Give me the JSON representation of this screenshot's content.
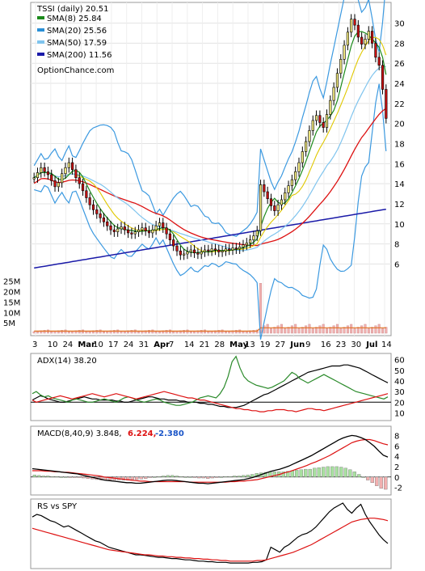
{
  "chart_data": [
    {
      "type": "candlestick",
      "title": "TSSI (daily) 20.51",
      "watermark": "OptionChance.com",
      "legend": [
        {
          "label": "SMA(8) 25.84",
          "color": "#1b8a1b"
        },
        {
          "label": "SMA(20) 25.56",
          "color": "#2a8fd6"
        },
        {
          "label": "SMA(50) 17.59",
          "color": "#7fc4ee"
        },
        {
          "label": "SMA(200) 11.56",
          "color": "#1a1aa8"
        }
      ],
      "x_tick_labels": [
        "3",
        "10",
        "24",
        "Mar",
        "10",
        "17",
        "24",
        "31",
        "Apr",
        "7",
        "14",
        "21",
        "28",
        "May",
        "13",
        "19",
        "27",
        "Jun",
        "9",
        "16",
        "23",
        "30",
        "Jul",
        "14"
      ],
      "price_ticks": [
        "30",
        "28",
        "26",
        "24",
        "22",
        "20",
        "18",
        "16",
        "14",
        "12",
        "10",
        "8",
        "6"
      ],
      "price_ylim": [
        4.5,
        31.5
      ],
      "volume_ticks": [
        "25M",
        "20M",
        "15M",
        "10M",
        "5M"
      ],
      "last_close": 20.51,
      "closes": [
        14.6,
        15.1,
        15.6,
        15.2,
        14.9,
        14.3,
        13.7,
        14.1,
        15.0,
        15.6,
        16.1,
        15.4,
        14.6,
        14.0,
        13.3,
        12.6,
        11.9,
        11.4,
        11.0,
        10.6,
        10.2,
        9.8,
        9.4,
        9.2,
        9.5,
        9.7,
        9.4,
        9.1,
        9.0,
        9.2,
        9.4,
        9.6,
        9.3,
        9.1,
        9.4,
        9.8,
        10.1,
        9.6,
        9.0,
        8.4,
        7.8,
        7.3,
        6.9,
        7.0,
        7.2,
        7.4,
        7.1,
        7.0,
        7.2,
        7.4,
        7.3,
        7.5,
        7.4,
        7.2,
        7.3,
        7.5,
        7.4,
        7.6,
        7.5,
        7.7,
        7.9,
        8.1,
        8.4,
        8.8,
        9.3,
        13.9,
        13.2,
        12.5,
        11.8,
        11.3,
        11.9,
        12.4,
        13.1,
        13.8,
        14.4,
        15.2,
        16.1,
        17.2,
        18.2,
        19.3,
        20.3,
        20.8,
        20.1,
        19.6,
        20.9,
        22.3,
        23.6,
        25.0,
        26.4,
        27.8,
        29.1,
        30.4,
        29.8,
        28.6,
        27.9,
        28.4,
        29.2,
        28.0,
        26.6,
        25.8,
        23.4,
        20.51
      ],
      "sma8_label": "SMA(8) 25.84",
      "sma20_label": "SMA(20) 25.56",
      "sma50_label": "SMA(50) 17.59",
      "sma200_label": "SMA(200) 11.56"
    },
    {
      "type": "line",
      "title": "ADX(14) 38.20",
      "ticks": [
        "60",
        "50",
        "40",
        "30",
        "20",
        "10"
      ],
      "ylim": [
        5,
        62
      ],
      "reference_line": 20,
      "series": [
        {
          "color": "#000000",
          "values": [
            22,
            24,
            26,
            25,
            23,
            22,
            21,
            20,
            20,
            21,
            22,
            23,
            24,
            25,
            24,
            23,
            23,
            22,
            22,
            22,
            22,
            21,
            21,
            20,
            20,
            21,
            22,
            23,
            24,
            25,
            25,
            24,
            23,
            23,
            22,
            22,
            22,
            21,
            21,
            20,
            20,
            20,
            19,
            19,
            18,
            18,
            17,
            16,
            16,
            15,
            15,
            15,
            16,
            17,
            19,
            21,
            23,
            25,
            27,
            28,
            30,
            32,
            34,
            36,
            38,
            40,
            42,
            44,
            46,
            48,
            49,
            50,
            51,
            52,
            53,
            54,
            54,
            54,
            55,
            55,
            54,
            53,
            52,
            50,
            48,
            46,
            44,
            42,
            40,
            38.2
          ]
        },
        {
          "color": "#2a8a2a",
          "values": [
            28,
            30,
            27,
            25,
            26,
            24,
            23,
            22,
            21,
            20,
            22,
            23,
            22,
            21,
            20,
            20,
            21,
            22,
            23,
            22,
            21,
            20,
            22,
            24,
            25,
            24,
            22,
            21,
            20,
            21,
            22,
            23,
            22,
            20,
            19,
            18,
            17,
            17,
            18,
            19,
            20,
            22,
            24,
            25,
            26,
            25,
            24,
            28,
            34,
            44,
            58,
            63,
            52,
            44,
            40,
            38,
            36,
            35,
            34,
            33,
            34,
            36,
            38,
            40,
            44,
            48,
            46,
            42,
            40,
            38,
            40,
            42,
            44,
            46,
            44,
            42,
            40,
            38,
            36,
            34,
            32,
            30,
            29,
            28,
            27,
            26,
            25,
            24,
            23,
            25
          ]
        },
        {
          "color": "#dd1111",
          "values": [
            22,
            20,
            21,
            22,
            23,
            24,
            25,
            26,
            25,
            24,
            23,
            24,
            25,
            26,
            27,
            28,
            27,
            26,
            25,
            26,
            27,
            28,
            27,
            26,
            25,
            24,
            23,
            24,
            25,
            26,
            27,
            28,
            29,
            30,
            29,
            28,
            27,
            26,
            25,
            24,
            24,
            23,
            22,
            22,
            21,
            20,
            19,
            18,
            17,
            16,
            15,
            14,
            14,
            13,
            13,
            12,
            12,
            11,
            11,
            12,
            12,
            13,
            13,
            13,
            12,
            12,
            11,
            12,
            13,
            14,
            14,
            13,
            13,
            12,
            13,
            14,
            15,
            16,
            17,
            18,
            19,
            20,
            21,
            22,
            23,
            24,
            25,
            26,
            27,
            28
          ]
        }
      ]
    },
    {
      "type": "line-histogram",
      "title": "MACD(8,40,9) 3.848,",
      "macd_value": "6.224,",
      "signal_value": "-2.380",
      "ticks": [
        "8",
        "6",
        "4",
        "2",
        "0",
        "-2"
      ],
      "ylim": [
        -3,
        9
      ],
      "macd_line": [
        1.6,
        1.5,
        1.4,
        1.3,
        1.2,
        1.1,
        1.0,
        0.9,
        0.8,
        0.7,
        0.6,
        0.4,
        0.2,
        0.0,
        -0.2,
        -0.4,
        -0.6,
        -0.7,
        -0.8,
        -0.9,
        -1.0,
        -1.1,
        -1.1,
        -1.2,
        -1.2,
        -1.1,
        -1.0,
        -0.9,
        -0.8,
        -0.7,
        -0.6,
        -0.6,
        -0.7,
        -0.8,
        -0.9,
        -1.0,
        -1.1,
        -1.2,
        -1.2,
        -1.3,
        -1.2,
        -1.1,
        -1.0,
        -0.9,
        -0.8,
        -0.7,
        -0.6,
        -0.5,
        -0.3,
        -0.1,
        0.2,
        0.5,
        0.8,
        1.1,
        1.3,
        1.5,
        1.8,
        2.1,
        2.5,
        2.9,
        3.3,
        3.7,
        4.1,
        4.6,
        5.1,
        5.6,
        6.1,
        6.6,
        7.1,
        7.5,
        7.8,
        8.0,
        7.9,
        7.6,
        7.2,
        6.6,
        5.9,
        5.0,
        4.2,
        3.848
      ],
      "signal_line": [
        1.2,
        1.2,
        1.2,
        1.1,
        1.1,
        1.0,
        1.0,
        0.9,
        0.9,
        0.8,
        0.7,
        0.6,
        0.5,
        0.4,
        0.3,
        0.2,
        0.0,
        -0.1,
        -0.2,
        -0.3,
        -0.4,
        -0.5,
        -0.6,
        -0.7,
        -0.8,
        -0.8,
        -0.9,
        -0.9,
        -0.9,
        -0.9,
        -0.9,
        -0.9,
        -0.9,
        -0.9,
        -0.9,
        -1.0,
        -1.0,
        -1.0,
        -1.0,
        -1.0,
        -1.0,
        -1.0,
        -1.0,
        -1.0,
        -0.9,
        -0.9,
        -0.8,
        -0.8,
        -0.7,
        -0.6,
        -0.5,
        -0.3,
        -0.1,
        0.1,
        0.3,
        0.5,
        0.8,
        1.0,
        1.3,
        1.6,
        1.9,
        2.2,
        2.6,
        2.9,
        3.3,
        3.7,
        4.1,
        4.6,
        5.1,
        5.6,
        6.1,
        6.6,
        6.9,
        7.1,
        7.2,
        7.2,
        7.0,
        6.7,
        6.4,
        6.2
      ],
      "histogram": [
        0.4,
        0.3,
        0.2,
        0.2,
        0.1,
        0.1,
        0.0,
        0.0,
        -0.1,
        -0.1,
        -0.1,
        -0.2,
        -0.3,
        -0.4,
        -0.5,
        -0.6,
        -0.6,
        -0.6,
        -0.6,
        -0.6,
        -0.6,
        -0.6,
        -0.5,
        -0.5,
        -0.4,
        -0.3,
        -0.1,
        0.0,
        0.1,
        0.2,
        0.3,
        0.3,
        0.2,
        0.1,
        0.0,
        0.0,
        -0.1,
        -0.2,
        -0.2,
        -0.3,
        -0.2,
        -0.1,
        0.0,
        0.1,
        0.1,
        0.2,
        0.2,
        0.3,
        0.4,
        0.5,
        0.7,
        0.8,
        0.9,
        1.0,
        1.0,
        1.0,
        1.0,
        1.1,
        1.2,
        1.3,
        1.4,
        1.5,
        1.5,
        1.7,
        1.8,
        1.9,
        2.0,
        2.0,
        2.0,
        1.9,
        1.7,
        1.4,
        1.0,
        0.5,
        0.0,
        -0.6,
        -1.1,
        -1.7,
        -2.2,
        -2.38
      ]
    },
    {
      "type": "line",
      "title": "RS vs SPY",
      "series": [
        {
          "color": "#000000",
          "values": [
            0.78,
            0.82,
            0.8,
            0.76,
            0.72,
            0.7,
            0.66,
            0.62,
            0.64,
            0.6,
            0.56,
            0.52,
            0.48,
            0.44,
            0.4,
            0.38,
            0.34,
            0.3,
            0.28,
            0.26,
            0.24,
            0.22,
            0.2,
            0.18,
            0.18,
            0.17,
            0.16,
            0.15,
            0.14,
            0.14,
            0.13,
            0.12,
            0.12,
            0.11,
            0.1,
            0.1,
            0.09,
            0.08,
            0.08,
            0.07,
            0.07,
            0.06,
            0.06,
            0.06,
            0.05,
            0.05,
            0.05,
            0.05,
            0.05,
            0.06,
            0.06,
            0.07,
            0.1,
            0.3,
            0.26,
            0.22,
            0.3,
            0.34,
            0.4,
            0.46,
            0.5,
            0.52,
            0.56,
            0.62,
            0.7,
            0.78,
            0.86,
            0.92,
            0.96,
            1.0,
            0.9,
            0.84,
            0.92,
            0.98,
            0.82,
            0.7,
            0.6,
            0.5,
            0.42,
            0.36
          ]
        },
        {
          "color": "#dd1111",
          "values": [
            0.6,
            0.58,
            0.56,
            0.54,
            0.52,
            0.5,
            0.48,
            0.46,
            0.44,
            0.42,
            0.4,
            0.38,
            0.36,
            0.34,
            0.32,
            0.3,
            0.28,
            0.26,
            0.25,
            0.24,
            0.23,
            0.22,
            0.21,
            0.2,
            0.19,
            0.18,
            0.18,
            0.17,
            0.16,
            0.16,
            0.15,
            0.15,
            0.14,
            0.14,
            0.13,
            0.13,
            0.12,
            0.12,
            0.11,
            0.11,
            0.1,
            0.1,
            0.09,
            0.09,
            0.08,
            0.08,
            0.08,
            0.08,
            0.08,
            0.08,
            0.09,
            0.09,
            0.1,
            0.12,
            0.14,
            0.16,
            0.18,
            0.2,
            0.22,
            0.25,
            0.28,
            0.31,
            0.34,
            0.38,
            0.42,
            0.46,
            0.5,
            0.54,
            0.58,
            0.62,
            0.66,
            0.7,
            0.72,
            0.74,
            0.75,
            0.76,
            0.76,
            0.75,
            0.74,
            0.72
          ]
        }
      ]
    }
  ]
}
